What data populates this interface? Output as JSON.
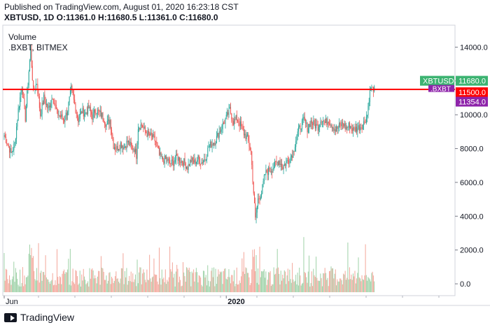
{
  "header": {
    "line1": "Published on TradingView.com, August 01, 2020 16:23:18 CST",
    "line2": "XBTUSD, 1D  O:11361.0  H:11680.5  L:11361.0  C:11680.0"
  },
  "chart_data": {
    "type": "candlestick",
    "symbol": "XBTUSD",
    "interval": "1D",
    "overlays": [
      "Volume",
      ".BXBT, BITMEX"
    ],
    "y_axis": {
      "ticks": [
        "14000.0",
        "12000.0",
        "10000.0",
        "8000.0",
        "6000.0",
        "4000.0",
        "2000.0",
        "0.0"
      ],
      "ylim": [
        -700,
        15300
      ]
    },
    "x_axis": {
      "ticks": [
        "Jun",
        "2020"
      ]
    },
    "price_series": {
      "name": "XBTUSD",
      "keypoints": [
        [
          0,
          8800
        ],
        [
          8,
          7700
        ],
        [
          12,
          8300
        ],
        [
          16,
          10300
        ],
        [
          20,
          11700
        ],
        [
          24,
          9800
        ],
        [
          28,
          12600
        ],
        [
          30,
          13800
        ],
        [
          33,
          11400
        ],
        [
          37,
          11900
        ],
        [
          41,
          10000
        ],
        [
          45,
          11000
        ],
        [
          50,
          10300
        ],
        [
          55,
          11100
        ],
        [
          60,
          10100
        ],
        [
          64,
          9900
        ],
        [
          68,
          9700
        ],
        [
          72,
          10300
        ],
        [
          76,
          11500
        ],
        [
          80,
          10600
        ],
        [
          84,
          9700
        ],
        [
          88,
          10200
        ],
        [
          92,
          10100
        ],
        [
          96,
          10400
        ],
        [
          100,
          9900
        ],
        [
          104,
          10300
        ],
        [
          108,
          10100
        ],
        [
          112,
          9900
        ],
        [
          116,
          9400
        ],
        [
          120,
          9700
        ],
        [
          124,
          8200
        ],
        [
          128,
          8000
        ],
        [
          132,
          8300
        ],
        [
          136,
          8100
        ],
        [
          140,
          8400
        ],
        [
          144,
          8100
        ],
        [
          148,
          8000
        ],
        [
          150,
          7600
        ],
        [
          152,
          9300
        ],
        [
          156,
          9400
        ],
        [
          160,
          9000
        ],
        [
          164,
          8800
        ],
        [
          168,
          8700
        ],
        [
          172,
          8400
        ],
        [
          176,
          7600
        ],
        [
          180,
          7300
        ],
        [
          184,
          7400
        ],
        [
          188,
          7100
        ],
        [
          192,
          7200
        ],
        [
          196,
          7500
        ],
        [
          200,
          7300
        ],
        [
          204,
          7200
        ],
        [
          208,
          6900
        ],
        [
          212,
          7300
        ],
        [
          216,
          7200
        ],
        [
          220,
          7400
        ],
        [
          224,
          7200
        ],
        [
          228,
          7400
        ],
        [
          232,
          8100
        ],
        [
          236,
          8300
        ],
        [
          240,
          8500
        ],
        [
          244,
          9000
        ],
        [
          248,
          9400
        ],
        [
          252,
          9800
        ],
        [
          256,
          10300
        ],
        [
          260,
          9600
        ],
        [
          264,
          9800
        ],
        [
          268,
          9400
        ],
        [
          272,
          8900
        ],
        [
          276,
          8600
        ],
        [
          280,
          7800
        ],
        [
          283,
          5400
        ],
        [
          285,
          3800
        ],
        [
          288,
          5000
        ],
        [
          292,
          5400
        ],
        [
          296,
          6500
        ],
        [
          300,
          6700
        ],
        [
          304,
          6800
        ],
        [
          308,
          7100
        ],
        [
          312,
          7300
        ],
        [
          316,
          6900
        ],
        [
          320,
          7200
        ],
        [
          324,
          7400
        ],
        [
          328,
          7800
        ],
        [
          332,
          8800
        ],
        [
          336,
          9300
        ],
        [
          340,
          9700
        ],
        [
          344,
          9200
        ],
        [
          348,
          9600
        ],
        [
          352,
          9400
        ],
        [
          356,
          9300
        ],
        [
          360,
          9800
        ],
        [
          364,
          9500
        ],
        [
          368,
          9700
        ],
        [
          372,
          9400
        ],
        [
          376,
          9100
        ],
        [
          380,
          9300
        ],
        [
          384,
          9500
        ],
        [
          388,
          9200
        ],
        [
          392,
          9400
        ],
        [
          396,
          9100
        ],
        [
          400,
          9200
        ],
        [
          404,
          9300
        ],
        [
          408,
          9500
        ],
        [
          412,
          10000
        ],
        [
          414,
          11000
        ],
        [
          416,
          11600
        ],
        [
          418,
          11500
        ],
        [
          420,
          11680
        ]
      ],
      "count": 421,
      "up_color": "#26a69a",
      "down_color": "#ef5350"
    },
    "reference_line": {
      "label": "11500.0",
      "value": 11500,
      "color": "#ff0000"
    },
    "price_labels": [
      {
        "name": "XBTUSD",
        "text": "11680.0",
        "value": 11680,
        "color": "#3cb371"
      },
      {
        "name": ".BXBT",
        "text": "11500.0",
        "value": 11500,
        "color": "#ff0000"
      },
      {
        "name": "",
        "text": "11354.0",
        "value": 11354,
        "color": "#8e24aa"
      }
    ],
    "volume_color_up": "#9fd2a8",
    "volume_color_down": "#f3a79b"
  },
  "footer": {
    "brand": "TradingView"
  }
}
